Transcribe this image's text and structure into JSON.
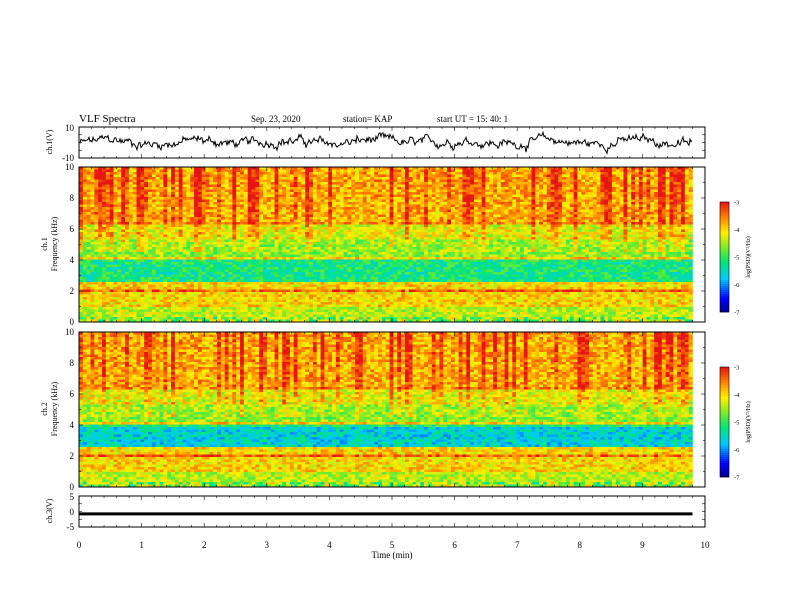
{
  "header": {
    "title": "VLF Spectra",
    "date": "Sep. 23, 2020",
    "station": "station= KAP",
    "start_time": "start  UT  =   15: 40: 1"
  },
  "chart_data": [
    {
      "type": "line",
      "name": "waveform-ch1",
      "ylabel": "ch.1(V)",
      "ylim": [
        -10,
        10
      ],
      "yticks": [
        "10",
        "-10"
      ],
      "x_range": [
        0,
        9.8
      ],
      "y_level": [
        -2,
        2.5
      ],
      "description_color": "#000000"
    },
    {
      "type": "heatmap",
      "name": "spectrogram-ch1",
      "ylabel_channel": "ch.1",
      "ylabel": "Frequency  (kHz)",
      "ylim": [
        0,
        10
      ],
      "yticks": [
        "0",
        "2",
        "4",
        "6",
        "8",
        "10"
      ],
      "x_range": [
        0,
        9.8
      ],
      "colorbar": {
        "label": "log(PSD)(V²/Hz)",
        "ticks": [
          "-3",
          "-4",
          "-5",
          "-6",
          "-7"
        ],
        "range": [
          -7,
          -3
        ]
      }
    },
    {
      "type": "heatmap",
      "name": "spectrogram-ch2",
      "ylabel_channel": "ch.2",
      "ylabel": "Frequency  (kHz)",
      "ylim": [
        0,
        10
      ],
      "yticks": [
        "0",
        "2",
        "4",
        "6",
        "8",
        "10"
      ],
      "x_range": [
        0,
        9.8
      ],
      "colorbar": {
        "label": "log(PSD)(V²/Hz)",
        "ticks": [
          "-3",
          "-4",
          "-5",
          "-6",
          "-7"
        ],
        "range": [
          -7,
          -3
        ]
      }
    },
    {
      "type": "line",
      "name": "waveform-ch3",
      "ylabel": "ch.3(V)",
      "ylim": [
        -5,
        5
      ],
      "yticks": [
        "5",
        "0",
        "-5"
      ],
      "x_range": [
        0,
        9.8
      ],
      "y_level": [
        -1.2,
        -0.3
      ]
    }
  ],
  "x_axis": {
    "label": "Time  (min)",
    "range": [
      0,
      10
    ],
    "ticks": [
      "0",
      "1",
      "2",
      "3",
      "4",
      "5",
      "6",
      "7",
      "8",
      "9",
      "10"
    ]
  }
}
